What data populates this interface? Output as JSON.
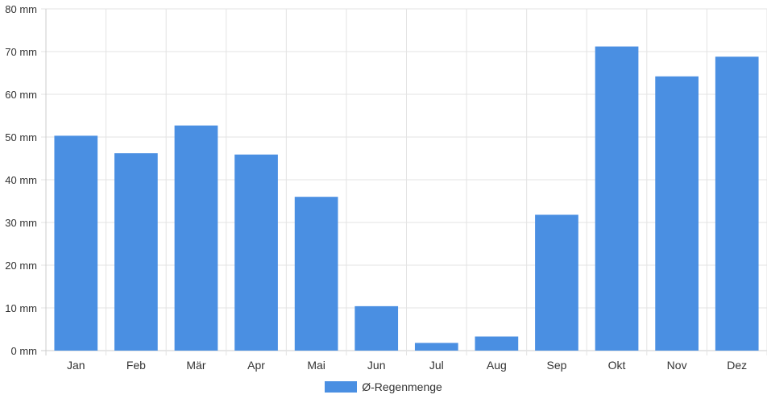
{
  "chart_data": {
    "type": "bar",
    "categories": [
      "Jan",
      "Feb",
      "Mär",
      "Apr",
      "Mai",
      "Jun",
      "Jul",
      "Aug",
      "Sep",
      "Okt",
      "Nov",
      "Dez"
    ],
    "series": [
      {
        "name": "Ø-Regenmenge",
        "values": [
          50.3,
          46.2,
          52.7,
          45.9,
          36.0,
          10.4,
          1.8,
          3.3,
          31.8,
          71.2,
          64.2,
          68.8
        ]
      }
    ],
    "y_ticks": [
      "0 mm",
      "10 mm",
      "20 mm",
      "30 mm",
      "40 mm",
      "50 mm",
      "60 mm",
      "70 mm",
      "80 mm"
    ],
    "ylim": [
      0,
      80
    ],
    "grid": true,
    "legend_position": "bottom-center",
    "bar_color": "#4a8fe2",
    "grid_color": "#e3e3e3",
    "axis_color": "#cccccc"
  }
}
